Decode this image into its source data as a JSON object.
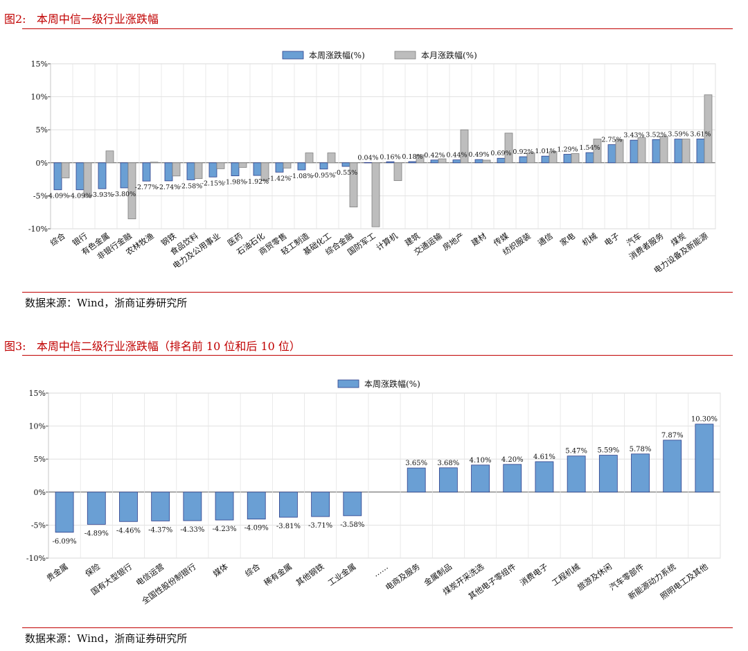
{
  "figure2": {
    "label": "图2:",
    "title": "本周中信一级行业涨跌幅",
    "source": "数据来源：Wind，浙商证券研究所"
  },
  "figure3": {
    "label": "图3:",
    "title": "本周中信二级行业涨跌幅（排名前 10 位和后 10 位）",
    "source": "数据来源：Wind，浙商证券研究所"
  },
  "colors": {
    "blue": "#6a9fd4",
    "blue_border": "#2c3d8a",
    "gray": "#bdbdbd",
    "gray_border": "#7f7f7f",
    "red": "#c00000"
  },
  "chart_data": [
    {
      "type": "bar",
      "categories": [
        "综合",
        "银行",
        "有色金属",
        "非银行金融",
        "农林牧渔",
        "钢铁",
        "食品饮料",
        "电力及公用事业",
        "医药",
        "石油石化",
        "商贸零售",
        "轻工制造",
        "基础化工",
        "综合金融",
        "国防军工",
        "计算机",
        "建筑",
        "交通运输",
        "房地产",
        "建材",
        "传媒",
        "纺织服装",
        "通信",
        "家电",
        "机械",
        "电子",
        "汽车",
        "消费者服务",
        "煤炭",
        "电力设备及新能源"
      ],
      "series": [
        {
          "name": "本周涨跌幅(%)",
          "values": [
            -4.09,
            -4.09,
            -3.93,
            -3.8,
            -2.77,
            -2.74,
            -2.58,
            -2.15,
            -1.98,
            -1.92,
            -1.42,
            -1.08,
            -0.95,
            -0.55,
            0.04,
            0.16,
            0.18,
            0.42,
            0.44,
            0.49,
            0.69,
            0.92,
            1.01,
            1.29,
            1.54,
            2.75,
            3.43,
            3.52,
            3.59,
            3.61
          ],
          "labels": [
            "-4.09%",
            "-4.09%",
            "-3.93%",
            "-3.80%",
            "-2.77%",
            "-2.74%",
            "-2.58%",
            "-2.15%",
            "-1.98%",
            "-1.92%",
            "-1.42%",
            "-1.08%",
            "-0.95%",
            "-0.55%",
            "0.04%",
            "0.16%",
            "0.18%",
            "0.42%",
            "0.44%",
            "0.49%",
            "0.69%",
            "0.92%",
            "1.01%",
            "1.29%",
            "1.54%",
            "2.75%",
            "3.43%",
            "3.52%",
            "3.59%",
            "3.61%"
          ]
        },
        {
          "name": "本月涨跌幅(%)",
          "values": [
            -2.3,
            -5.2,
            1.8,
            -8.5,
            0.1,
            -2.0,
            -2.4,
            -0.9,
            -0.7,
            -2.7,
            -0.8,
            1.5,
            1.5,
            -6.7,
            -9.7,
            -2.7,
            1.2,
            0.6,
            5.0,
            0.4,
            4.5,
            1.5,
            1.7,
            1.4,
            3.6,
            3.5,
            3.8,
            4.0,
            3.6,
            10.3
          ]
        }
      ],
      "yticks": [
        "15%",
        "10%",
        "5%",
        "0%",
        "-5%",
        "-10%"
      ],
      "ylim": [
        -10,
        15
      ],
      "grid": true,
      "legend": "top-center"
    },
    {
      "type": "bar",
      "categories": [
        "贵金属",
        "保险",
        "国有大型银行",
        "电信运营",
        "全国性股份制银行",
        "媒体",
        "综合",
        "稀有金属",
        "其他钢铁",
        "工业金属",
        "……",
        "电商及服务",
        "金属制品",
        "煤炭开采洗选",
        "其他电子零组件",
        "消费电子",
        "工程机械",
        "旅游及休闲",
        "汽车零部件",
        "新能源动力系统",
        "照明电工及其他"
      ],
      "series": [
        {
          "name": "本周涨跌幅(%)",
          "values": [
            -6.09,
            -4.89,
            -4.46,
            -4.37,
            -4.33,
            -4.23,
            -4.09,
            -3.81,
            -3.71,
            -3.58,
            null,
            3.65,
            3.68,
            4.1,
            4.2,
            4.61,
            5.47,
            5.59,
            5.78,
            7.87,
            10.3
          ],
          "labels": [
            "-6.09%",
            "-4.89%",
            "-4.46%",
            "-4.37%",
            "-4.33%",
            "-4.23%",
            "-4.09%",
            "-3.81%",
            "-3.71%",
            "-3.58%",
            "",
            "3.65%",
            "3.68%",
            "4.10%",
            "4.20%",
            "4.61%",
            "5.47%",
            "5.59%",
            "5.78%",
            "7.87%",
            "10.30%"
          ]
        }
      ],
      "yticks": [
        "15%",
        "10%",
        "5%",
        "0%",
        "-5%",
        "-10%"
      ],
      "ylim": [
        -10,
        15
      ],
      "grid": true,
      "legend": "top-center"
    }
  ]
}
